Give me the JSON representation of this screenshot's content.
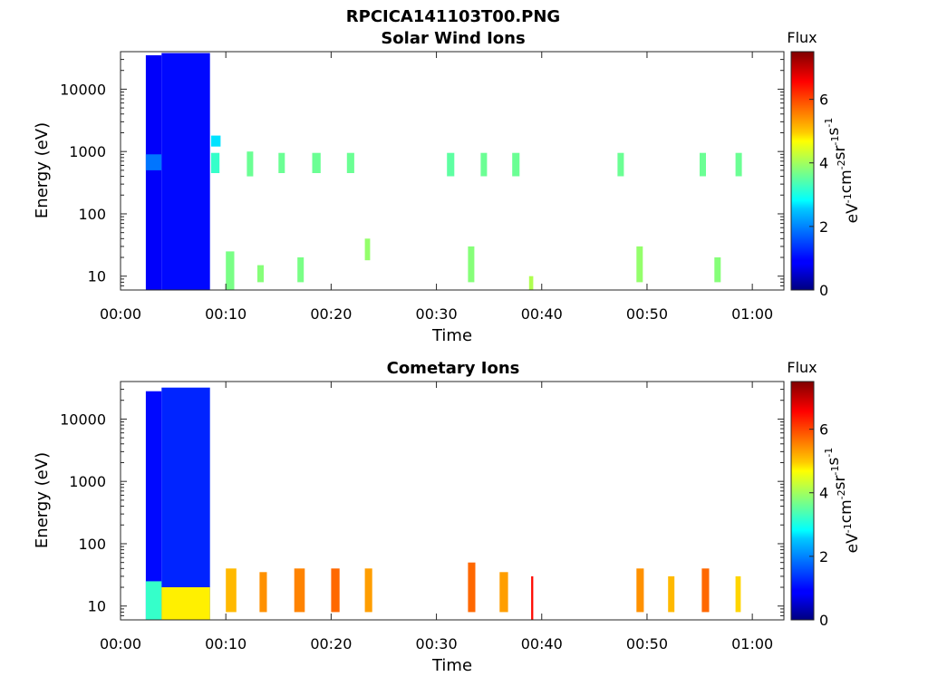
{
  "figure_title": "RPCICA141103T00.PNG",
  "colorbar": {
    "title": "Flux",
    "ticks": [
      "0",
      "2",
      "4",
      "6"
    ],
    "ylabel_parts": [
      "eV",
      "-1",
      "cm",
      "-2",
      "sr",
      "-1",
      "s",
      "-1"
    ]
  },
  "chart_data": [
    {
      "type": "heatmap",
      "title": "Solar Wind Ions",
      "xlabel": "Time",
      "ylabel": "Energy (eV)",
      "x_tick_labels": [
        "00:00",
        "00:10",
        "00:20",
        "00:30",
        "00:40",
        "00:50",
        "01:00"
      ],
      "x_tick_minutes": [
        0,
        10,
        20,
        30,
        40,
        50,
        60
      ],
      "y_tick_labels": [
        "10",
        "100",
        "1000",
        "10000"
      ],
      "y_tick_values": [
        10,
        100,
        1000,
        10000
      ],
      "y_scale": "log",
      "xlim_minutes": [
        0,
        63
      ],
      "ylim": [
        6,
        40000
      ],
      "zlim": [
        0,
        7.5
      ],
      "colormap": "jet",
      "grid": false,
      "data": [
        {
          "t0": 2.4,
          "t1": 3.9,
          "e0": 6,
          "e1": 35000,
          "flux": 0.9
        },
        {
          "t0": 3.9,
          "t1": 8.5,
          "e0": 6,
          "e1": 38000,
          "flux": 1.0
        },
        {
          "t0": 2.4,
          "t1": 3.9,
          "e0": 500,
          "e1": 900,
          "flux": 1.8
        },
        {
          "t0": 8.6,
          "t1": 9.5,
          "e0": 1200,
          "e1": 1800,
          "flux": 2.6
        },
        {
          "t0": 8.6,
          "t1": 9.4,
          "e0": 450,
          "e1": 950,
          "flux": 3.2
        },
        {
          "t0": 10.0,
          "t1": 10.8,
          "e0": 6,
          "e1": 25,
          "flux": 3.7
        },
        {
          "t0": 12.0,
          "t1": 12.6,
          "e0": 400,
          "e1": 1000,
          "flux": 3.6
        },
        {
          "t0": 13.0,
          "t1": 13.6,
          "e0": 8,
          "e1": 15,
          "flux": 3.8
        },
        {
          "t0": 15.0,
          "t1": 15.6,
          "e0": 450,
          "e1": 950,
          "flux": 3.6
        },
        {
          "t0": 16.8,
          "t1": 17.4,
          "e0": 8,
          "e1": 20,
          "flux": 3.7
        },
        {
          "t0": 18.2,
          "t1": 19.0,
          "e0": 450,
          "e1": 950,
          "flux": 3.6
        },
        {
          "t0": 21.5,
          "t1": 22.2,
          "e0": 450,
          "e1": 950,
          "flux": 3.6
        },
        {
          "t0": 23.2,
          "t1": 23.7,
          "e0": 18,
          "e1": 40,
          "flux": 3.9
        },
        {
          "t0": 31.0,
          "t1": 31.7,
          "e0": 400,
          "e1": 950,
          "flux": 3.5
        },
        {
          "t0": 34.2,
          "t1": 34.8,
          "e0": 400,
          "e1": 950,
          "flux": 3.6
        },
        {
          "t0": 37.2,
          "t1": 37.9,
          "e0": 400,
          "e1": 950,
          "flux": 3.6
        },
        {
          "t0": 33.0,
          "t1": 33.6,
          "e0": 8,
          "e1": 30,
          "flux": 3.8
        },
        {
          "t0": 38.8,
          "t1": 39.2,
          "e0": 6,
          "e1": 10,
          "flux": 4.1
        },
        {
          "t0": 47.2,
          "t1": 47.8,
          "e0": 400,
          "e1": 950,
          "flux": 3.6
        },
        {
          "t0": 49.0,
          "t1": 49.6,
          "e0": 8,
          "e1": 30,
          "flux": 3.9
        },
        {
          "t0": 55.0,
          "t1": 55.6,
          "e0": 400,
          "e1": 950,
          "flux": 3.6
        },
        {
          "t0": 56.4,
          "t1": 57.0,
          "e0": 8,
          "e1": 20,
          "flux": 3.8
        },
        {
          "t0": 58.4,
          "t1": 59.0,
          "e0": 400,
          "e1": 950,
          "flux": 3.6
        }
      ]
    },
    {
      "type": "heatmap",
      "title": "Cometary Ions",
      "xlabel": "Time",
      "ylabel": "Energy (eV)",
      "x_tick_labels": [
        "00:00",
        "00:10",
        "00:20",
        "00:30",
        "00:40",
        "00:50",
        "01:00"
      ],
      "x_tick_minutes": [
        0,
        10,
        20,
        30,
        40,
        50,
        60
      ],
      "y_tick_labels": [
        "10",
        "100",
        "1000",
        "10000"
      ],
      "y_tick_values": [
        10,
        100,
        1000,
        10000
      ],
      "y_scale": "log",
      "xlim_minutes": [
        0,
        63
      ],
      "ylim": [
        6,
        40000
      ],
      "zlim": [
        0,
        7.5
      ],
      "colormap": "jet",
      "grid": false,
      "data": [
        {
          "t0": 2.4,
          "t1": 3.9,
          "e0": 6,
          "e1": 28000,
          "flux": 1.0
        },
        {
          "t0": 3.9,
          "t1": 8.5,
          "e0": 6,
          "e1": 32000,
          "flux": 1.2
        },
        {
          "t0": 2.4,
          "t1": 3.9,
          "e0": 6,
          "e1": 25,
          "flux": 3.2
        },
        {
          "t0": 3.9,
          "t1": 8.5,
          "e0": 6,
          "e1": 20,
          "flux": 4.8
        },
        {
          "t0": 10.0,
          "t1": 11.0,
          "e0": 8,
          "e1": 40,
          "flux": 5.2
        },
        {
          "t0": 13.2,
          "t1": 13.9,
          "e0": 8,
          "e1": 35,
          "flux": 5.5
        },
        {
          "t0": 16.5,
          "t1": 17.5,
          "e0": 8,
          "e1": 40,
          "flux": 5.6
        },
        {
          "t0": 20.0,
          "t1": 20.8,
          "e0": 8,
          "e1": 40,
          "flux": 5.8
        },
        {
          "t0": 23.2,
          "t1": 23.9,
          "e0": 8,
          "e1": 40,
          "flux": 5.4
        },
        {
          "t0": 33.0,
          "t1": 33.7,
          "e0": 8,
          "e1": 50,
          "flux": 5.8
        },
        {
          "t0": 36.0,
          "t1": 36.8,
          "e0": 8,
          "e1": 35,
          "flux": 5.4
        },
        {
          "t0": 39.0,
          "t1": 39.2,
          "e0": 6,
          "e1": 30,
          "flux": 6.5
        },
        {
          "t0": 49.0,
          "t1": 49.7,
          "e0": 8,
          "e1": 40,
          "flux": 5.5
        },
        {
          "t0": 52.0,
          "t1": 52.6,
          "e0": 8,
          "e1": 30,
          "flux": 5.2
        },
        {
          "t0": 55.2,
          "t1": 55.9,
          "e0": 8,
          "e1": 40,
          "flux": 5.8
        },
        {
          "t0": 58.4,
          "t1": 58.9,
          "e0": 8,
          "e1": 30,
          "flux": 5.0
        }
      ]
    }
  ]
}
